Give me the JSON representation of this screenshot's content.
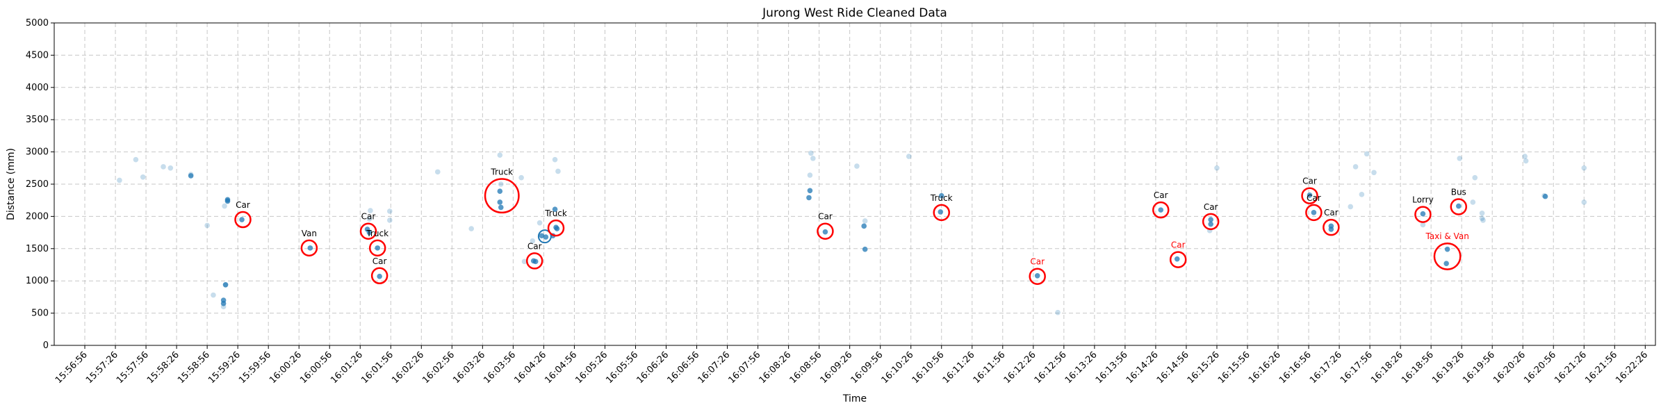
{
  "chart_data": {
    "type": "scatter",
    "title": "Jurong West Ride Cleaned Data",
    "xlabel": "Time",
    "ylabel": "Distance (mm)",
    "ylim": [
      0,
      5000
    ],
    "yticks": [
      0,
      500,
      1000,
      1500,
      2000,
      2500,
      3000,
      3500,
      4000,
      4500,
      5000
    ],
    "xlim": [
      "15:56:26",
      "16:22:36"
    ],
    "xticks": [
      "15:56:56",
      "15:57:26",
      "15:57:56",
      "15:58:26",
      "15:58:56",
      "15:59:26",
      "15:59:56",
      "16:00:26",
      "16:00:56",
      "16:01:26",
      "16:01:56",
      "16:02:26",
      "16:02:56",
      "16:03:26",
      "16:03:56",
      "16:04:26",
      "16:04:56",
      "16:05:26",
      "16:05:56",
      "16:06:26",
      "16:06:56",
      "16:07:26",
      "16:07:56",
      "16:08:26",
      "16:08:56",
      "16:09:26",
      "16:09:56",
      "16:10:26",
      "16:10:56",
      "16:11:26",
      "16:11:56",
      "16:12:26",
      "16:12:56",
      "16:13:26",
      "16:13:56",
      "16:14:26",
      "16:14:56",
      "16:15:26",
      "16:15:56",
      "16:16:26",
      "16:16:56",
      "16:17:26",
      "16:17:56",
      "16:18:26",
      "16:18:56",
      "16:19:26",
      "16:19:56",
      "16:20:26",
      "16:20:56",
      "16:21:26",
      "16:21:56",
      "16:22:26"
    ],
    "grid": true,
    "points_faint": [
      {
        "x": "15:57:30",
        "y": 2560
      },
      {
        "x": "15:57:46",
        "y": 2880
      },
      {
        "x": "15:57:53",
        "y": 2610
      },
      {
        "x": "15:58:13",
        "y": 2770
      },
      {
        "x": "15:58:20",
        "y": 2750
      },
      {
        "x": "15:58:40",
        "y": 2650
      },
      {
        "x": "15:58:56",
        "y": 1860
      },
      {
        "x": "15:59:02",
        "y": 780
      },
      {
        "x": "15:59:13",
        "y": 2160
      },
      {
        "x": "15:59:16",
        "y": 2230
      },
      {
        "x": "15:59:12",
        "y": 600
      },
      {
        "x": "15:59:14",
        "y": 940
      },
      {
        "x": "16:01:36",
        "y": 2090
      },
      {
        "x": "16:01:35",
        "y": 1960
      },
      {
        "x": "16:01:55",
        "y": 2080
      },
      {
        "x": "16:01:55",
        "y": 1940
      },
      {
        "x": "16:02:42",
        "y": 2690
      },
      {
        "x": "16:03:15",
        "y": 1810
      },
      {
        "x": "16:03:43",
        "y": 2950
      },
      {
        "x": "16:03:44",
        "y": 2500
      },
      {
        "x": "16:04:04",
        "y": 2600
      },
      {
        "x": "16:04:07",
        "y": 1300
      },
      {
        "x": "16:04:22",
        "y": 1900
      },
      {
        "x": "16:04:37",
        "y": 2880
      },
      {
        "x": "16:04:40",
        "y": 2700
      },
      {
        "x": "16:08:48",
        "y": 2980
      },
      {
        "x": "16:08:50",
        "y": 2900
      },
      {
        "x": "16:08:47",
        "y": 2640
      },
      {
        "x": "16:09:33",
        "y": 2780
      },
      {
        "x": "16:09:41",
        "y": 1930
      },
      {
        "x": "16:10:24",
        "y": 2930
      },
      {
        "x": "16:12:50",
        "y": 510
      },
      {
        "x": "16:15:19",
        "y": 1780
      },
      {
        "x": "16:15:26",
        "y": 2750
      },
      {
        "x": "16:17:42",
        "y": 2770
      },
      {
        "x": "16:17:48",
        "y": 2340
      },
      {
        "x": "16:17:53",
        "y": 2970
      },
      {
        "x": "16:18:00",
        "y": 2680
      },
      {
        "x": "16:17:37",
        "y": 2150
      },
      {
        "x": "16:18:48",
        "y": 1870
      },
      {
        "x": "16:19:24",
        "y": 2900
      },
      {
        "x": "16:19:39",
        "y": 2600
      },
      {
        "x": "16:19:37",
        "y": 2220
      },
      {
        "x": "16:19:46",
        "y": 2050
      },
      {
        "x": "16:19:46",
        "y": 1970
      },
      {
        "x": "16:19:47",
        "y": 1940
      },
      {
        "x": "16:20:28",
        "y": 2930
      },
      {
        "x": "16:20:29",
        "y": 2860
      },
      {
        "x": "16:20:47",
        "y": 2320
      },
      {
        "x": "16:21:26",
        "y": 2750
      },
      {
        "x": "16:21:26",
        "y": 2220
      },
      {
        "x": "16:04:15",
        "y": 1620
      }
    ],
    "points_dark": [
      {
        "x": "15:58:40",
        "y": 2630
      },
      {
        "x": "15:59:16",
        "y": 2260
      },
      {
        "x": "15:59:16",
        "y": 2240
      },
      {
        "x": "15:59:12",
        "y": 700
      },
      {
        "x": "15:59:12",
        "y": 650
      },
      {
        "x": "15:59:14",
        "y": 940
      },
      {
        "x": "15:59:30",
        "y": 1950
      },
      {
        "x": "16:00:37",
        "y": 1510
      },
      {
        "x": "16:01:33",
        "y": 1800
      },
      {
        "x": "16:01:35",
        "y": 1750
      },
      {
        "x": "16:01:43",
        "y": 1510
      },
      {
        "x": "16:01:45",
        "y": 1070
      },
      {
        "x": "16:03:43",
        "y": 2390
      },
      {
        "x": "16:03:43",
        "y": 2220
      },
      {
        "x": "16:03:44",
        "y": 2140
      },
      {
        "x": "16:04:16",
        "y": 1310
      },
      {
        "x": "16:04:18",
        "y": 1300
      },
      {
        "x": "16:04:24",
        "y": 1700
      },
      {
        "x": "16:04:28",
        "y": 1680
      },
      {
        "x": "16:04:35",
        "y": 1700
      },
      {
        "x": "16:04:37",
        "y": 2110
      },
      {
        "x": "16:04:38",
        "y": 1830
      },
      {
        "x": "16:04:39",
        "y": 1810
      },
      {
        "x": "16:08:47",
        "y": 2400
      },
      {
        "x": "16:08:46",
        "y": 2290
      },
      {
        "x": "16:09:02",
        "y": 1760
      },
      {
        "x": "16:09:40",
        "y": 1850
      },
      {
        "x": "16:09:41",
        "y": 1490
      },
      {
        "x": "16:10:56",
        "y": 2320
      },
      {
        "x": "16:10:55",
        "y": 2070
      },
      {
        "x": "16:12:30",
        "y": 1080
      },
      {
        "x": "16:14:31",
        "y": 2100
      },
      {
        "x": "16:14:47",
        "y": 1340
      },
      {
        "x": "16:15:20",
        "y": 1950
      },
      {
        "x": "16:15:20",
        "y": 1880
      },
      {
        "x": "16:16:57",
        "y": 2330
      },
      {
        "x": "16:17:01",
        "y": 2060
      },
      {
        "x": "16:17:18",
        "y": 1850
      },
      {
        "x": "16:17:18",
        "y": 1800
      },
      {
        "x": "16:18:48",
        "y": 2040
      },
      {
        "x": "16:19:12",
        "y": 1490
      },
      {
        "x": "16:19:11",
        "y": 1270
      },
      {
        "x": "16:19:23",
        "y": 2160
      },
      {
        "x": "16:20:48",
        "y": 2310
      }
    ],
    "annotations": [
      {
        "label": "Car",
        "color": "black",
        "x": "15:59:31",
        "y": 1950,
        "r": 1.0
      },
      {
        "label": "Van",
        "color": "black",
        "x": "16:00:36",
        "y": 1510,
        "r": 1.0
      },
      {
        "label": "Car",
        "color": "black",
        "x": "16:01:34",
        "y": 1770,
        "r": 1.0
      },
      {
        "label": "Truck",
        "color": "black",
        "x": "16:01:43",
        "y": 1510,
        "r": 1.0
      },
      {
        "label": "Car",
        "color": "black",
        "x": "16:01:45",
        "y": 1080,
        "r": 1.0
      },
      {
        "label": "Truck",
        "color": "black",
        "x": "16:03:45",
        "y": 2320,
        "r": 2.2
      },
      {
        "label": "Car",
        "color": "black",
        "x": "16:04:17",
        "y": 1310,
        "r": 1.0
      },
      {
        "label": "Truck",
        "color": "black",
        "x": "16:04:38",
        "y": 1820,
        "r": 1.0
      },
      {
        "label": "Car",
        "color": "black",
        "x": "16:09:02",
        "y": 1770,
        "r": 1.0
      },
      {
        "label": "Truck",
        "color": "black",
        "x": "16:10:56",
        "y": 2060,
        "r": 1.0
      },
      {
        "label": "Car",
        "color": "red",
        "x": "16:12:30",
        "y": 1070,
        "r": 1.0
      },
      {
        "label": "Car",
        "color": "black",
        "x": "16:14:31",
        "y": 2100,
        "r": 1.0
      },
      {
        "label": "Car",
        "color": "red",
        "x": "16:14:48",
        "y": 1330,
        "r": 1.0
      },
      {
        "label": "Car",
        "color": "black",
        "x": "16:15:20",
        "y": 1920,
        "r": 1.0
      },
      {
        "label": "Car",
        "color": "black",
        "x": "16:16:57",
        "y": 2320,
        "r": 1.0
      },
      {
        "label": "Car",
        "color": "black",
        "x": "16:17:01",
        "y": 2060,
        "r": 1.0
      },
      {
        "label": "Car",
        "color": "black",
        "x": "16:17:18",
        "y": 1830,
        "r": 1.0
      },
      {
        "label": "Lorry",
        "color": "black",
        "x": "16:18:48",
        "y": 2030,
        "r": 1.0
      },
      {
        "label": "Taxi & Van",
        "color": "red",
        "x": "16:19:12",
        "y": 1380,
        "r": 1.7
      },
      {
        "label": "Bus",
        "color": "black",
        "x": "16:19:23",
        "y": 2150,
        "r": 1.0
      }
    ],
    "highlight_ring": {
      "x": "16:04:27",
      "y": 1690
    },
    "colors": {
      "point": "#1f77b4",
      "annotation_black": "#000000",
      "annotation_red": "#ff0000",
      "circle": "#ff0000"
    }
  }
}
